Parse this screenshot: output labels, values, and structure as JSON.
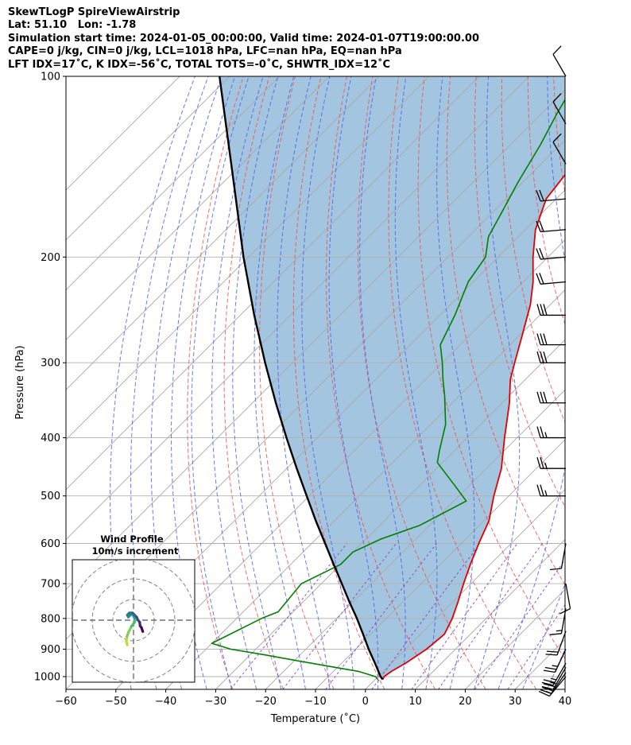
{
  "header": {
    "line1": "SkewTLogP SpireViewAirstrip",
    "line2": "Lat: 51.10   Lon: -1.78",
    "line3": "Simulation start time: 2024-01-05_00:00:00, Valid time: 2024-01-07T19:00:00.00",
    "line4": "CAPE=0 j/kg, CIN=0 j/kg, LCL=1018 hPa, LFC=nan hPa, EQ=nan hPa",
    "line5": "LFT IDX=17˚C, K IDX=-56˚C, TOTAL TOTS=-0˚C, SHWTR_IDX=12˚C"
  },
  "chart_data": {
    "type": "line",
    "subtype": "skew-t log-p",
    "xlabel": "Temperature (˚C)",
    "ylabel": "Pressure (hPa)",
    "xlim": [
      -60,
      40
    ],
    "ylim": [
      1050,
      100
    ],
    "y_scale": "log",
    "grid": true,
    "x_ticks": [
      -60,
      -50,
      -40,
      -30,
      -20,
      -10,
      0,
      10,
      20,
      30,
      40
    ],
    "y_ticks": [
      100,
      200,
      300,
      400,
      500,
      600,
      700,
      800,
      900,
      1000
    ],
    "series": [
      {
        "role": "temperature",
        "color": "#e00000",
        "points": [
          [
            1011,
            1.5
          ],
          [
            1000,
            1.2
          ],
          [
            980,
            1.6
          ],
          [
            950,
            2.8
          ],
          [
            900,
            4.2
          ],
          [
            850,
            4.8
          ],
          [
            800,
            3.2
          ],
          [
            750,
            1.0
          ],
          [
            700,
            -1.5
          ],
          [
            650,
            -4.0
          ],
          [
            600,
            -6.5
          ],
          [
            550,
            -9.0
          ],
          [
            500,
            -13.0
          ],
          [
            450,
            -17.0
          ],
          [
            400,
            -22.5
          ],
          [
            350,
            -28.5
          ],
          [
            320,
            -33.0
          ],
          [
            300,
            -35.5
          ],
          [
            270,
            -39.5
          ],
          [
            240,
            -44.0
          ],
          [
            220,
            -48.0
          ],
          [
            200,
            -53.0
          ],
          [
            180,
            -58.0
          ],
          [
            160,
            -62.0
          ],
          [
            140,
            -63.5
          ],
          [
            120,
            -65.0
          ],
          [
            100,
            -66.0
          ]
        ]
      },
      {
        "role": "dewpoint",
        "color": "#008000",
        "points": [
          [
            1011,
            0.5
          ],
          [
            1000,
            -0.5
          ],
          [
            980,
            -5
          ],
          [
            950,
            -16
          ],
          [
            920,
            -27
          ],
          [
            900,
            -35
          ],
          [
            880,
            -40
          ],
          [
            800,
            -35
          ],
          [
            780,
            -33
          ],
          [
            700,
            -34
          ],
          [
            650,
            -30
          ],
          [
            620,
            -30
          ],
          [
            590,
            -27
          ],
          [
            560,
            -22
          ],
          [
            510,
            -17.5
          ],
          [
            480,
            -23
          ],
          [
            440,
            -31
          ],
          [
            420,
            -33
          ],
          [
            380,
            -37
          ],
          [
            340,
            -43
          ],
          [
            320,
            -46.5
          ],
          [
            300,
            -50
          ],
          [
            280,
            -54
          ],
          [
            250,
            -57
          ],
          [
            220,
            -61
          ],
          [
            200,
            -62.5
          ],
          [
            185,
            -66
          ],
          [
            170,
            -68
          ],
          [
            150,
            -71
          ],
          [
            130,
            -74
          ],
          [
            115,
            -77
          ],
          [
            100,
            -80
          ]
        ]
      },
      {
        "role": "parcel-profile",
        "color": "#000000",
        "points": [
          [
            1011,
            1.5
          ],
          [
            1000,
            0.5
          ],
          [
            950,
            -3.3
          ],
          [
            900,
            -7.4
          ],
          [
            850,
            -11.5
          ],
          [
            800,
            -15.9
          ],
          [
            750,
            -20.8
          ],
          [
            700,
            -25.9
          ],
          [
            650,
            -31.4
          ],
          [
            600,
            -37.3
          ],
          [
            550,
            -43.7
          ],
          [
            500,
            -50.5
          ],
          [
            450,
            -58.0
          ],
          [
            400,
            -66.2
          ],
          [
            350,
            -75.3
          ],
          [
            300,
            -85.5
          ],
          [
            250,
            -97.2
          ],
          [
            200,
            -111
          ],
          [
            150,
            -128
          ],
          [
            100,
            -152
          ]
        ]
      }
    ],
    "wind_barbs": [
      {
        "p": 1000,
        "speed_kt": 15,
        "dir": 220
      },
      {
        "p": 985,
        "speed_kt": 20,
        "dir": 215
      },
      {
        "p": 965,
        "speed_kt": 25,
        "dir": 210
      },
      {
        "p": 950,
        "speed_kt": 25,
        "dir": 210
      },
      {
        "p": 900,
        "speed_kt": 25,
        "dir": 205
      },
      {
        "p": 840,
        "speed_kt": 20,
        "dir": 200
      },
      {
        "p": 770,
        "speed_kt": 15,
        "dir": 190
      },
      {
        "p": 700,
        "speed_kt": 10,
        "dir": 170
      },
      {
        "p": 600,
        "speed_kt": 10,
        "dir": 190
      },
      {
        "p": 500,
        "speed_kt": 25,
        "dir": 270
      },
      {
        "p": 450,
        "speed_kt": 25,
        "dir": 270
      },
      {
        "p": 400,
        "speed_kt": 25,
        "dir": 270
      },
      {
        "p": 350,
        "speed_kt": 30,
        "dir": 270
      },
      {
        "p": 300,
        "speed_kt": 30,
        "dir": 270
      },
      {
        "p": 280,
        "speed_kt": 30,
        "dir": 270
      },
      {
        "p": 250,
        "speed_kt": 30,
        "dir": 270
      },
      {
        "p": 220,
        "speed_kt": 20,
        "dir": 265
      },
      {
        "p": 200,
        "speed_kt": 20,
        "dir": 265
      },
      {
        "p": 180,
        "speed_kt": 20,
        "dir": 265
      },
      {
        "p": 160,
        "speed_kt": 20,
        "dir": 265
      },
      {
        "p": 140,
        "speed_kt": 10,
        "dir": 330
      },
      {
        "p": 120,
        "speed_kt": 10,
        "dir": 330
      },
      {
        "p": 100,
        "speed_kt": 10,
        "dir": 330
      }
    ],
    "hodograph": {
      "title_line1": "Wind Profile",
      "title_line2": "10m/s increment",
      "ring_increment_ms": 10,
      "rings": 3,
      "colormap": "viridis",
      "uv_ms": [
        [
          -3,
          -12
        ],
        [
          -3.5,
          -10
        ],
        [
          -3.2,
          -8
        ],
        [
          -2.5,
          -6
        ],
        [
          -1,
          -3
        ],
        [
          0.5,
          -1
        ],
        [
          0.5,
          1
        ],
        [
          -0.5,
          3
        ],
        [
          -1.5,
          2.5
        ],
        [
          -2.5,
          1.5
        ],
        [
          -3,
          2.5
        ],
        [
          -2,
          3.5
        ],
        [
          -0.5,
          3.5
        ],
        [
          0.5,
          2.5
        ],
        [
          1.5,
          1.5
        ],
        [
          2.2,
          0
        ],
        [
          3.0,
          -1.0
        ],
        [
          3.2,
          -2.8
        ],
        [
          3.8,
          -3.5
        ],
        [
          4.5,
          -5.5
        ]
      ]
    }
  }
}
